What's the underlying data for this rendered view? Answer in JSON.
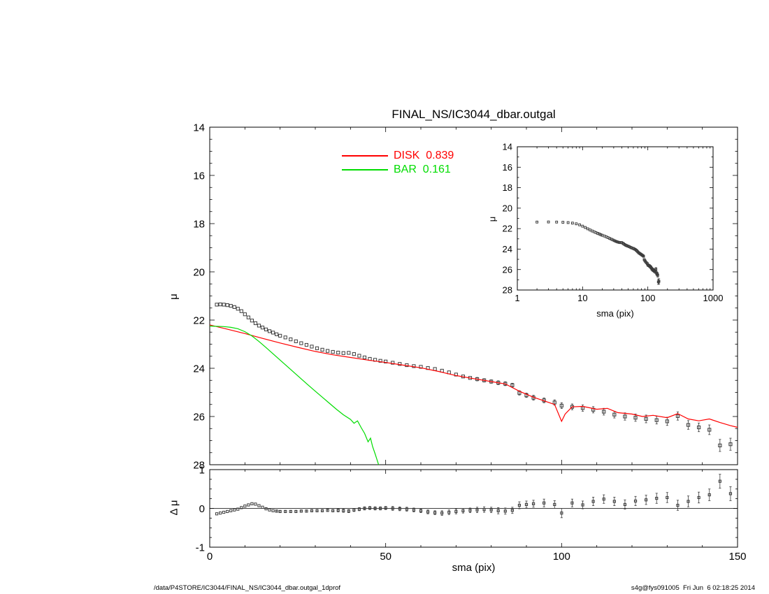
{
  "page": {
    "title": "FINAL_NS/IC3044_dbar.outgal",
    "footer_left": "/data/P4STORE/IC3044/FINAL_NS/IC3044_dbar.outgal_1dprof",
    "footer_right": "s4g@fys091005  Fri Jun  6 02:18:25 2014"
  },
  "legend": {
    "disk_label": "DISK  0.839",
    "bar_label": "BAR  0.161",
    "disk_color": "#ff0000",
    "bar_color": "#00dd00"
  },
  "chart_data": [
    {
      "id": "main",
      "type": "scatter+line",
      "title": "FINAL_NS/IC3044_dbar.outgal",
      "xlabel": "sma (pix)",
      "ylabel": "μ",
      "xscale": "linear",
      "xlim": [
        0,
        150
      ],
      "ylim": [
        14,
        28
      ],
      "y_inverted": true,
      "xticks": [
        0,
        50,
        100,
        150
      ],
      "yticks": [
        14,
        16,
        18,
        20,
        22,
        24,
        26,
        28
      ],
      "x_minor": 10,
      "y_minor": 0.5,
      "show_x_labels": false,
      "show_y_labels": true,
      "series": [
        "observed",
        "disk",
        "bar"
      ],
      "legend_position": "top-center-inside"
    },
    {
      "id": "inset",
      "type": "scatter+line",
      "title": "",
      "xlabel": "sma (pix)",
      "ylabel": "μ",
      "xscale": "log",
      "xlim": [
        1,
        1000
      ],
      "ylim": [
        14,
        28
      ],
      "y_inverted": true,
      "xticks": [
        1,
        10,
        100,
        1000
      ],
      "yticks": [
        14,
        16,
        18,
        20,
        22,
        24,
        26,
        28
      ],
      "y_minor": 1,
      "show_x_labels": true,
      "show_y_labels": true,
      "series": [
        "observed",
        "disk",
        "bar"
      ]
    },
    {
      "id": "residual",
      "type": "scatter",
      "title": "",
      "xlabel": "sma (pix)",
      "ylabel": "Δ μ",
      "xscale": "linear",
      "xlim": [
        0,
        150
      ],
      "ylim": [
        -1,
        1
      ],
      "y_inverted": false,
      "xticks": [
        0,
        50,
        100,
        150
      ],
      "yticks": [
        -1,
        0,
        1
      ],
      "x_minor": 10,
      "y_minor": 0.25,
      "show_x_labels": true,
      "show_y_labels": true,
      "series": [
        "zeroline",
        "residuals"
      ]
    }
  ],
  "datasets": {
    "observed": {
      "name": "observed profile",
      "kind": "scatter",
      "marker": "open-square",
      "color": "#3c3c3c",
      "points": [
        [
          2,
          21.36,
          0.02
        ],
        [
          3,
          21.35,
          0.02
        ],
        [
          4,
          21.36,
          0.02
        ],
        [
          5,
          21.38,
          0.02
        ],
        [
          6,
          21.41,
          0.02
        ],
        [
          7,
          21.46,
          0.02
        ],
        [
          8,
          21.53,
          0.02
        ],
        [
          9,
          21.63,
          0.02
        ],
        [
          10,
          21.76,
          0.02
        ],
        [
          11,
          21.89,
          0.02
        ],
        [
          12,
          22.02,
          0.02
        ],
        [
          13,
          22.13,
          0.02
        ],
        [
          14,
          22.23,
          0.02
        ],
        [
          15,
          22.31,
          0.02
        ],
        [
          16,
          22.39,
          0.02
        ],
        [
          17,
          22.46,
          0.02
        ],
        [
          18,
          22.52,
          0.02
        ],
        [
          19,
          22.59,
          0.02
        ],
        [
          20,
          22.65,
          0.03
        ],
        [
          21.5,
          22.72,
          0.03
        ],
        [
          23,
          22.8,
          0.03
        ],
        [
          24.5,
          22.88,
          0.03
        ],
        [
          26,
          22.96,
          0.03
        ],
        [
          27.5,
          23.03,
          0.03
        ],
        [
          29,
          23.1,
          0.03
        ],
        [
          30.5,
          23.17,
          0.03
        ],
        [
          32,
          23.23,
          0.03
        ],
        [
          33.5,
          23.28,
          0.03
        ],
        [
          35,
          23.32,
          0.03
        ],
        [
          36.5,
          23.35,
          0.04
        ],
        [
          38,
          23.37,
          0.04
        ],
        [
          39.5,
          23.36,
          0.04
        ],
        [
          41,
          23.41,
          0.04
        ],
        [
          42.5,
          23.48,
          0.04
        ],
        [
          44,
          23.55,
          0.04
        ],
        [
          45.5,
          23.61,
          0.04
        ],
        [
          47,
          23.65,
          0.04
        ],
        [
          48.5,
          23.69,
          0.04
        ],
        [
          50,
          23.72,
          0.04
        ],
        [
          52,
          23.77,
          0.05
        ],
        [
          54,
          23.82,
          0.05
        ],
        [
          56,
          23.87,
          0.05
        ],
        [
          58,
          23.91,
          0.05
        ],
        [
          60,
          23.94,
          0.05
        ],
        [
          62,
          23.99,
          0.05
        ],
        [
          64,
          24.03,
          0.05
        ],
        [
          66,
          24.1,
          0.06
        ],
        [
          68,
          24.17,
          0.06
        ],
        [
          70,
          24.26,
          0.06
        ],
        [
          72,
          24.34,
          0.06
        ],
        [
          74,
          24.4,
          0.06
        ],
        [
          76,
          24.45,
          0.07
        ],
        [
          78,
          24.5,
          0.07
        ],
        [
          80,
          24.55,
          0.07
        ],
        [
          82,
          24.6,
          0.08
        ],
        [
          84,
          24.64,
          0.08
        ],
        [
          86,
          24.7,
          0.08
        ],
        [
          88,
          25.02,
          0.09
        ],
        [
          90,
          25.12,
          0.09
        ],
        [
          92,
          25.22,
          0.1
        ],
        [
          95,
          25.33,
          0.1
        ],
        [
          98,
          25.42,
          0.11
        ],
        [
          100,
          25.55,
          0.12
        ],
        [
          103,
          25.6,
          0.12
        ],
        [
          106,
          25.65,
          0.13
        ],
        [
          109,
          25.72,
          0.13
        ],
        [
          112,
          25.8,
          0.14
        ],
        [
          115,
          25.92,
          0.14
        ],
        [
          118,
          26.0,
          0.15
        ],
        [
          121,
          26.05,
          0.15
        ],
        [
          124,
          26.1,
          0.16
        ],
        [
          127,
          26.15,
          0.16
        ],
        [
          130,
          26.2,
          0.17
        ],
        [
          133,
          25.98,
          0.17
        ],
        [
          136,
          26.35,
          0.18
        ],
        [
          139,
          26.45,
          0.18
        ],
        [
          142,
          26.55,
          0.2
        ],
        [
          145,
          27.2,
          0.25
        ],
        [
          148,
          27.15,
          0.25
        ]
      ]
    },
    "disk": {
      "name": "DISK",
      "kind": "line",
      "color": "#ff0000",
      "fraction": 0.839,
      "points": [
        [
          0,
          22.2
        ],
        [
          5,
          22.38
        ],
        [
          10,
          22.56
        ],
        [
          15,
          22.76
        ],
        [
          20,
          22.95
        ],
        [
          25,
          23.13
        ],
        [
          30,
          23.3
        ],
        [
          35,
          23.44
        ],
        [
          40,
          23.55
        ],
        [
          45,
          23.66
        ],
        [
          50,
          23.76
        ],
        [
          55,
          23.87
        ],
        [
          60,
          23.98
        ],
        [
          65,
          24.13
        ],
        [
          70,
          24.3
        ],
        [
          75,
          24.43
        ],
        [
          80,
          24.55
        ],
        [
          84,
          24.65
        ],
        [
          88,
          24.95
        ],
        [
          92,
          25.2
        ],
        [
          95,
          25.35
        ],
        [
          98,
          25.5
        ],
        [
          100,
          26.2
        ],
        [
          101,
          25.9
        ],
        [
          103,
          25.6
        ],
        [
          106,
          25.58
        ],
        [
          110,
          25.7
        ],
        [
          113,
          25.66
        ],
        [
          116,
          25.84
        ],
        [
          120,
          25.9
        ],
        [
          123,
          26.0
        ],
        [
          126,
          25.95
        ],
        [
          130,
          26.05
        ],
        [
          133,
          25.88
        ],
        [
          136,
          26.1
        ],
        [
          139,
          26.18
        ],
        [
          142,
          26.1
        ],
        [
          145,
          26.25
        ],
        [
          148,
          26.38
        ],
        [
          150,
          26.45
        ]
      ]
    },
    "bar": {
      "name": "BAR",
      "kind": "line",
      "color": "#00dd00",
      "fraction": 0.161,
      "points": [
        [
          0,
          22.25
        ],
        [
          4,
          22.27
        ],
        [
          6,
          22.3
        ],
        [
          8,
          22.36
        ],
        [
          10,
          22.48
        ],
        [
          12,
          22.66
        ],
        [
          14,
          22.89
        ],
        [
          16,
          23.14
        ],
        [
          18,
          23.4
        ],
        [
          20,
          23.66
        ],
        [
          22,
          23.92
        ],
        [
          24,
          24.18
        ],
        [
          26,
          24.44
        ],
        [
          28,
          24.7
        ],
        [
          30,
          24.95
        ],
        [
          32,
          25.2
        ],
        [
          34,
          25.45
        ],
        [
          36,
          25.7
        ],
        [
          38,
          25.93
        ],
        [
          40,
          26.12
        ],
        [
          41,
          26.28
        ],
        [
          42,
          26.18
        ],
        [
          43,
          26.45
        ],
        [
          44,
          26.7
        ],
        [
          45,
          27.05
        ],
        [
          45.7,
          26.9
        ],
        [
          46.3,
          27.25
        ],
        [
          47,
          27.55
        ],
        [
          48,
          28.0
        ]
      ]
    },
    "residuals": {
      "name": "residual (data - model)",
      "kind": "scatter",
      "marker": "open-square",
      "color": "#3c3c3c",
      "points": [
        [
          2,
          -0.14,
          0.02
        ],
        [
          3,
          -0.12,
          0.02
        ],
        [
          4,
          -0.1,
          0.02
        ],
        [
          5,
          -0.08,
          0.02
        ],
        [
          6,
          -0.06,
          0.02
        ],
        [
          7,
          -0.04,
          0.02
        ],
        [
          8,
          -0.02,
          0.02
        ],
        [
          9,
          0.02,
          0.02
        ],
        [
          10,
          0.06,
          0.02
        ],
        [
          11,
          0.09,
          0.02
        ],
        [
          12,
          0.12,
          0.02
        ],
        [
          13,
          0.11,
          0.02
        ],
        [
          14,
          0.07,
          0.02
        ],
        [
          15,
          0.03,
          0.02
        ],
        [
          16,
          -0.01,
          0.02
        ],
        [
          17,
          -0.04,
          0.02
        ],
        [
          18,
          -0.06,
          0.02
        ],
        [
          19,
          -0.07,
          0.03
        ],
        [
          20,
          -0.08,
          0.03
        ],
        [
          21.5,
          -0.08,
          0.03
        ],
        [
          23,
          -0.08,
          0.03
        ],
        [
          24.5,
          -0.08,
          0.03
        ],
        [
          26,
          -0.07,
          0.03
        ],
        [
          27.5,
          -0.07,
          0.03
        ],
        [
          29,
          -0.06,
          0.03
        ],
        [
          30.5,
          -0.06,
          0.03
        ],
        [
          32,
          -0.06,
          0.03
        ],
        [
          33.5,
          -0.05,
          0.03
        ],
        [
          35,
          -0.06,
          0.03
        ],
        [
          36.5,
          -0.05,
          0.04
        ],
        [
          38,
          -0.06,
          0.04
        ],
        [
          39.5,
          -0.07,
          0.04
        ],
        [
          41,
          -0.04,
          0.04
        ],
        [
          42.5,
          -0.02,
          0.04
        ],
        [
          44,
          0.0,
          0.04
        ],
        [
          45.5,
          0.01,
          0.04
        ],
        [
          47,
          0.0,
          0.04
        ],
        [
          48.5,
          0.0,
          0.04
        ],
        [
          50,
          0.01,
          0.04
        ],
        [
          52,
          0.0,
          0.05
        ],
        [
          54,
          -0.01,
          0.05
        ],
        [
          56,
          -0.02,
          0.05
        ],
        [
          58,
          -0.04,
          0.05
        ],
        [
          60,
          -0.06,
          0.05
        ],
        [
          62,
          -0.09,
          0.05
        ],
        [
          64,
          -0.11,
          0.05
        ],
        [
          66,
          -0.12,
          0.06
        ],
        [
          68,
          -0.1,
          0.06
        ],
        [
          70,
          -0.08,
          0.06
        ],
        [
          72,
          -0.06,
          0.06
        ],
        [
          74,
          -0.05,
          0.06
        ],
        [
          76,
          -0.04,
          0.07
        ],
        [
          78,
          -0.03,
          0.07
        ],
        [
          80,
          -0.04,
          0.07
        ],
        [
          82,
          -0.06,
          0.08
        ],
        [
          84,
          -0.07,
          0.08
        ],
        [
          86,
          -0.05,
          0.08
        ],
        [
          88,
          0.08,
          0.09
        ],
        [
          90,
          0.1,
          0.09
        ],
        [
          92,
          0.12,
          0.09
        ],
        [
          95,
          0.14,
          0.1
        ],
        [
          98,
          0.1,
          0.1
        ],
        [
          100,
          -0.12,
          0.12
        ],
        [
          103,
          0.14,
          0.1
        ],
        [
          106,
          0.09,
          0.1
        ],
        [
          109,
          0.18,
          0.11
        ],
        [
          112,
          0.24,
          0.11
        ],
        [
          115,
          0.18,
          0.11
        ],
        [
          118,
          0.1,
          0.12
        ],
        [
          121,
          0.19,
          0.12
        ],
        [
          124,
          0.22,
          0.12
        ],
        [
          127,
          0.26,
          0.13
        ],
        [
          130,
          0.28,
          0.13
        ],
        [
          133,
          0.08,
          0.13
        ],
        [
          136,
          0.18,
          0.14
        ],
        [
          139,
          0.28,
          0.14
        ],
        [
          142,
          0.35,
          0.15
        ],
        [
          145,
          0.7,
          0.18
        ],
        [
          148,
          0.38,
          0.18
        ]
      ]
    },
    "zeroline": {
      "name": "zero reference line",
      "kind": "hline",
      "y": 0,
      "color": "#000000"
    }
  }
}
